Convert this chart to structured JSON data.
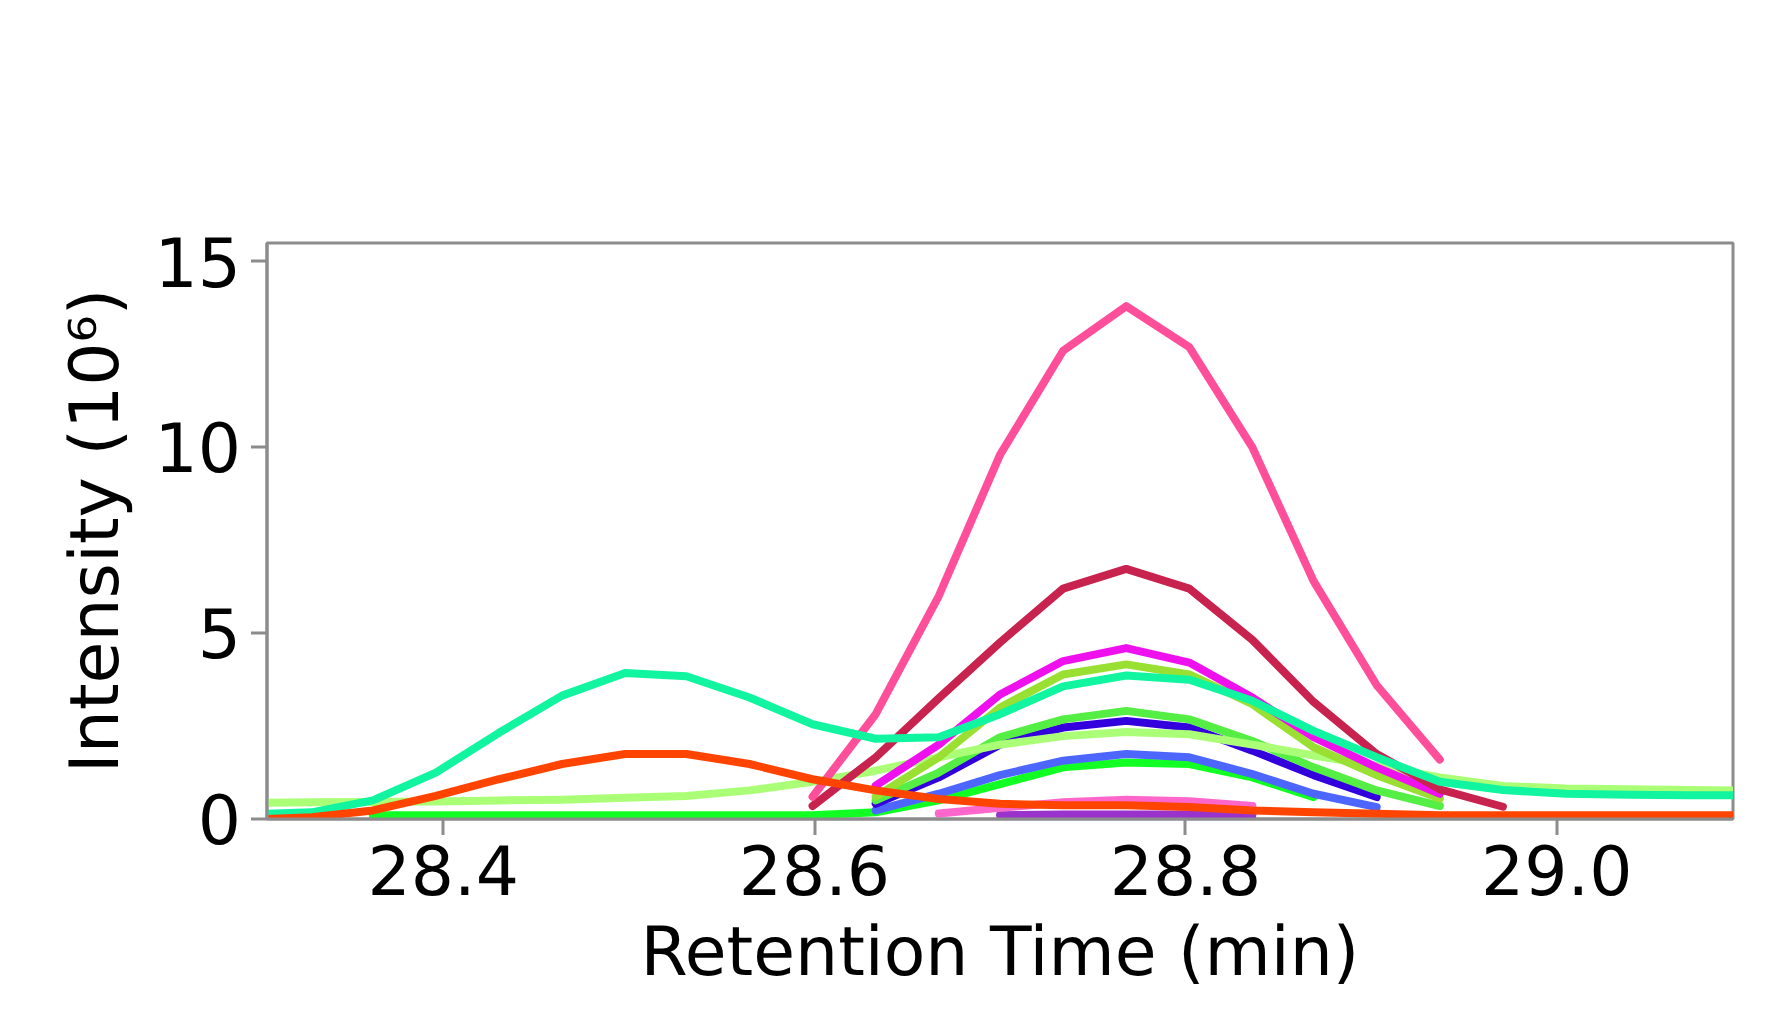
{
  "chart_data": {
    "type": "line",
    "xlabel": "Retention Time (min)",
    "ylabel": "Intensity (10⁶)",
    "xlim": [
      28.305,
      29.095
    ],
    "ylim": [
      0,
      15.5
    ],
    "xticks": [
      28.4,
      28.6,
      28.8,
      {
        "value": 29.0,
        "label": "29.0"
      }
    ],
    "yticks": [
      0,
      5,
      10,
      15
    ],
    "x": [
      28.305,
      28.329,
      28.362,
      28.396,
      28.43,
      28.464,
      28.498,
      28.531,
      28.565,
      28.599,
      28.633,
      28.667,
      28.7,
      28.734,
      28.768,
      28.802,
      28.836,
      28.869,
      28.903,
      28.937,
      28.971,
      29.005,
      29.039,
      29.072,
      29.095
    ],
    "series": [
      {
        "color": "#9933cc",
        "values": [
          null,
          null,
          null,
          null,
          null,
          null,
          null,
          null,
          null,
          null,
          null,
          null,
          0.1,
          0.12,
          0.12,
          0.12,
          0.1,
          null,
          null,
          null,
          null,
          null,
          null,
          null,
          null
        ]
      },
      {
        "color": "#ff66cc",
        "values": [
          null,
          null,
          null,
          null,
          null,
          null,
          null,
          null,
          null,
          null,
          null,
          0.15,
          0.3,
          0.45,
          0.52,
          0.48,
          0.35,
          null,
          null,
          null,
          null,
          null,
          null,
          null,
          null
        ]
      },
      {
        "color": "#11ff22",
        "values": [
          null,
          null,
          0.1,
          0.1,
          0.1,
          0.1,
          0.1,
          0.1,
          0.1,
          0.1,
          0.18,
          0.5,
          0.94,
          1.39,
          1.52,
          1.48,
          1.12,
          0.59,
          null,
          null,
          null,
          null,
          null,
          null,
          null
        ]
      },
      {
        "color": "#4d66ff",
        "values": [
          null,
          null,
          null,
          null,
          null,
          null,
          null,
          null,
          null,
          null,
          0.23,
          0.68,
          1.18,
          1.57,
          1.75,
          1.66,
          1.21,
          0.68,
          0.32,
          null,
          null,
          null,
          null,
          null,
          null
        ]
      },
      {
        "color": "#3300dd",
        "values": [
          null,
          null,
          null,
          null,
          null,
          null,
          null,
          null,
          null,
          null,
          0.41,
          1.12,
          2.0,
          2.46,
          2.64,
          2.46,
          1.84,
          1.18,
          0.59,
          null,
          null,
          null,
          null,
          null,
          null
        ]
      },
      {
        "color": "#55ee44",
        "values": [
          null,
          null,
          null,
          null,
          null,
          null,
          null,
          null,
          null,
          null,
          0.5,
          1.25,
          2.2,
          2.68,
          2.91,
          2.68,
          2.1,
          1.39,
          0.77,
          0.35,
          null,
          null,
          null,
          null,
          null
        ]
      },
      {
        "color": "#aaff77",
        "values": [
          0.44,
          0.45,
          0.46,
          0.47,
          0.5,
          0.52,
          0.57,
          0.62,
          0.77,
          1.0,
          1.3,
          1.66,
          2.0,
          2.23,
          2.34,
          2.28,
          2.0,
          1.71,
          1.43,
          1.12,
          0.89,
          0.82,
          0.8,
          0.78,
          0.77
        ]
      },
      {
        "color": "#99e033",
        "values": [
          null,
          null,
          null,
          null,
          null,
          null,
          null,
          null,
          null,
          null,
          0.6,
          1.66,
          3.0,
          3.89,
          4.16,
          3.89,
          3.09,
          1.93,
          1.18,
          0.55,
          null,
          null,
          null,
          null,
          null
        ]
      },
      {
        "color": "#ee11ee",
        "values": [
          null,
          null,
          null,
          null,
          null,
          null,
          null,
          null,
          null,
          null,
          0.9,
          2.0,
          3.35,
          4.25,
          4.6,
          4.21,
          3.27,
          2.2,
          1.39,
          0.68,
          null,
          null,
          null,
          null,
          null
        ]
      },
      {
        "color": "#c8234f",
        "values": [
          null,
          null,
          null,
          null,
          null,
          null,
          null,
          null,
          null,
          0.35,
          1.66,
          3.25,
          4.75,
          6.2,
          6.73,
          6.2,
          4.82,
          3.15,
          1.75,
          0.8,
          0.33,
          null,
          null,
          null,
          null
        ]
      },
      {
        "color": "#ff4f9b",
        "values": [
          null,
          null,
          null,
          null,
          null,
          null,
          null,
          null,
          null,
          0.6,
          2.82,
          6.0,
          9.8,
          12.6,
          13.8,
          12.7,
          10.0,
          6.4,
          3.6,
          1.6,
          null,
          null,
          null,
          null,
          null
        ]
      },
      {
        "color": "#11f5a0",
        "values": [
          0.14,
          0.18,
          0.5,
          1.25,
          2.32,
          3.32,
          3.93,
          3.84,
          3.27,
          2.55,
          2.16,
          2.2,
          2.82,
          3.57,
          3.86,
          3.75,
          3.18,
          2.37,
          1.66,
          1.0,
          0.78,
          0.68,
          0.65,
          0.64,
          0.64
        ]
      },
      {
        "color": "#ff4400",
        "values": [
          0,
          0.05,
          0.23,
          0.62,
          1.07,
          1.48,
          1.75,
          1.75,
          1.48,
          1.07,
          0.77,
          0.54,
          0.41,
          0.37,
          0.37,
          0.32,
          0.23,
          0.18,
          0.14,
          0.1,
          0.1,
          0.1,
          0.1,
          0.1,
          0.1
        ]
      }
    ]
  }
}
